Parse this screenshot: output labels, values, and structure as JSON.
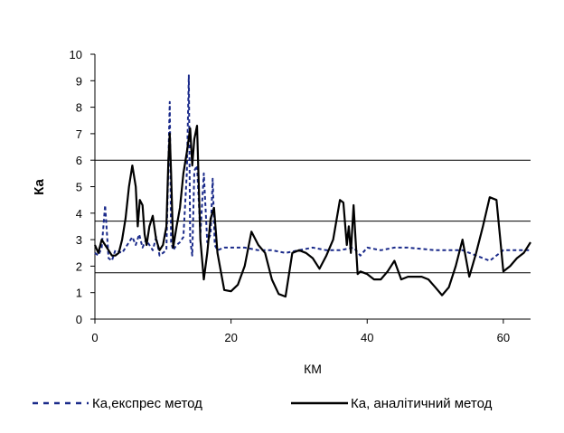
{
  "chart_data": {
    "type": "line",
    "title": "",
    "xlabel": "КМ",
    "ylabel": "Ка",
    "xlim": [
      0,
      64
    ],
    "ylim": [
      0,
      10
    ],
    "x_ticks": [
      0,
      20,
      40,
      60
    ],
    "y_ticks": [
      0,
      1,
      2,
      3,
      4,
      5,
      6,
      7,
      8,
      9,
      10
    ],
    "reference_lines": [
      1.75,
      3.7,
      6.0
    ],
    "legend_position": "bottom",
    "series": [
      {
        "name": "Ка,експрес метод",
        "style": "dashed",
        "color": "#1a2a8a",
        "x": [
          0,
          0.5,
          1,
          1.5,
          2,
          2.5,
          3,
          4,
          5,
          5.5,
          6,
          6.5,
          7,
          7.5,
          8,
          8.5,
          9,
          9.5,
          10,
          10.5,
          11,
          11.2,
          11.5,
          12,
          12.5,
          13,
          13.5,
          13.8,
          14,
          14.3,
          14.6,
          15,
          15.5,
          16,
          16.5,
          17,
          17.3,
          17.6,
          18,
          19,
          20,
          22,
          24,
          26,
          28,
          30,
          32,
          34,
          36,
          38,
          39,
          40,
          42,
          44,
          46,
          50,
          54,
          56,
          58,
          60,
          62,
          64
        ],
        "y": [
          2.5,
          2.4,
          2.7,
          4.3,
          2.3,
          2.2,
          2.6,
          2.5,
          2.9,
          3.1,
          2.8,
          3.2,
          2.7,
          3.0,
          2.8,
          2.6,
          3.1,
          2.4,
          2.5,
          2.6,
          8.2,
          2.9,
          2.6,
          2.8,
          2.9,
          3.1,
          5.5,
          9.2,
          3.0,
          2.4,
          5.6,
          5.8,
          3.2,
          5.5,
          2.9,
          3.2,
          5.3,
          2.8,
          2.6,
          2.7,
          2.7,
          2.7,
          2.6,
          2.6,
          2.5,
          2.6,
          2.7,
          2.6,
          2.6,
          2.7,
          2.4,
          2.7,
          2.6,
          2.7,
          2.7,
          2.6,
          2.6,
          2.4,
          2.2,
          2.6,
          2.6,
          2.6
        ]
      },
      {
        "name": "Ка, аналітичний метод",
        "style": "solid",
        "color": "#000000",
        "x": [
          0,
          0.5,
          1,
          1.5,
          2,
          2.5,
          3,
          3.5,
          4,
          4.5,
          5,
          5.5,
          6,
          6.3,
          6.6,
          7,
          7.3,
          7.6,
          8,
          8.5,
          9,
          9.5,
          10,
          10.5,
          10.8,
          11,
          11.2,
          11.5,
          12,
          12.5,
          13,
          13.5,
          14,
          14.3,
          14.6,
          15,
          15.5,
          16,
          16.5,
          17,
          17.5,
          18,
          19,
          20,
          21,
          22,
          23,
          24,
          25,
          26,
          27,
          28,
          29,
          30,
          31,
          32,
          33,
          34,
          35,
          36,
          36.5,
          37,
          37.3,
          37.6,
          38,
          38.3,
          38.6,
          39,
          40,
          41,
          42,
          43,
          44,
          45,
          46,
          47,
          48,
          49,
          50,
          51,
          52,
          53,
          54,
          55,
          56,
          57,
          58,
          59,
          60,
          61,
          62,
          63,
          64
        ],
        "y": [
          2.8,
          2.5,
          3.0,
          2.8,
          2.6,
          2.4,
          2.4,
          2.5,
          3.0,
          3.8,
          5.0,
          5.8,
          5.0,
          3.5,
          4.5,
          4.3,
          3.2,
          2.8,
          3.5,
          3.9,
          3.0,
          2.6,
          2.8,
          3.5,
          6.0,
          7.0,
          5.5,
          2.7,
          3.5,
          4.2,
          5.5,
          6.3,
          7.2,
          5.8,
          6.8,
          7.3,
          3.0,
          1.5,
          2.5,
          3.8,
          4.2,
          2.5,
          1.1,
          1.05,
          1.3,
          2.0,
          3.3,
          2.8,
          2.5,
          1.5,
          0.95,
          0.85,
          2.5,
          2.6,
          2.5,
          2.3,
          1.9,
          2.4,
          3.0,
          4.5,
          4.4,
          2.8,
          3.5,
          2.5,
          4.3,
          3.0,
          1.7,
          1.8,
          1.7,
          1.5,
          1.5,
          1.8,
          2.2,
          1.5,
          1.6,
          1.6,
          1.6,
          1.5,
          1.2,
          0.9,
          1.2,
          2.0,
          3.0,
          1.6,
          2.5,
          3.5,
          4.6,
          4.5,
          1.8,
          2.0,
          2.3,
          2.5,
          2.9
        ]
      }
    ]
  }
}
